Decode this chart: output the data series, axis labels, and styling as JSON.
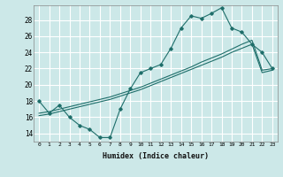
{
  "xlabel": "Humidex (Indice chaleur)",
  "background_color": "#cce8e8",
  "grid_color": "#ffffff",
  "line_color": "#1e6e6a",
  "xlim": [
    -0.5,
    23.5
  ],
  "ylim": [
    13.0,
    29.8
  ],
  "xticks": [
    0,
    1,
    2,
    3,
    4,
    5,
    6,
    7,
    8,
    9,
    10,
    11,
    12,
    13,
    14,
    15,
    16,
    17,
    18,
    19,
    20,
    21,
    22,
    23
  ],
  "yticks": [
    14,
    16,
    18,
    20,
    22,
    24,
    26,
    28
  ],
  "series1_x": [
    0,
    1,
    2,
    3,
    4,
    5,
    6,
    7,
    8,
    9,
    10,
    11,
    12,
    13,
    14,
    15,
    16,
    17,
    18,
    19,
    20,
    21,
    22,
    23
  ],
  "series1_y": [
    18.0,
    16.5,
    17.5,
    16.0,
    15.0,
    14.5,
    13.5,
    13.5,
    17.0,
    19.5,
    21.5,
    22.0,
    22.5,
    24.5,
    27.0,
    28.5,
    28.2,
    28.8,
    29.5,
    27.0,
    26.5,
    25.0,
    24.0,
    22.0
  ],
  "series2_x": [
    0,
    1,
    2,
    3,
    4,
    5,
    6,
    7,
    8,
    9,
    10,
    11,
    12,
    13,
    14,
    15,
    16,
    17,
    18,
    19,
    20,
    21,
    22,
    23
  ],
  "series2_y": [
    16.5,
    16.7,
    17.0,
    17.3,
    17.6,
    17.9,
    18.2,
    18.5,
    18.9,
    19.3,
    19.7,
    20.2,
    20.7,
    21.2,
    21.7,
    22.2,
    22.8,
    23.3,
    23.8,
    24.4,
    25.0,
    25.5,
    21.8,
    22.0
  ],
  "series3_x": [
    0,
    1,
    2,
    3,
    4,
    5,
    6,
    7,
    8,
    9,
    10,
    11,
    12,
    13,
    14,
    15,
    16,
    17,
    18,
    19,
    20,
    21,
    22,
    23
  ],
  "series3_y": [
    16.2,
    16.4,
    16.7,
    17.0,
    17.3,
    17.6,
    17.9,
    18.2,
    18.6,
    19.0,
    19.4,
    19.9,
    20.4,
    20.9,
    21.4,
    21.9,
    22.4,
    22.9,
    23.4,
    24.0,
    24.5,
    25.0,
    21.5,
    21.8
  ]
}
